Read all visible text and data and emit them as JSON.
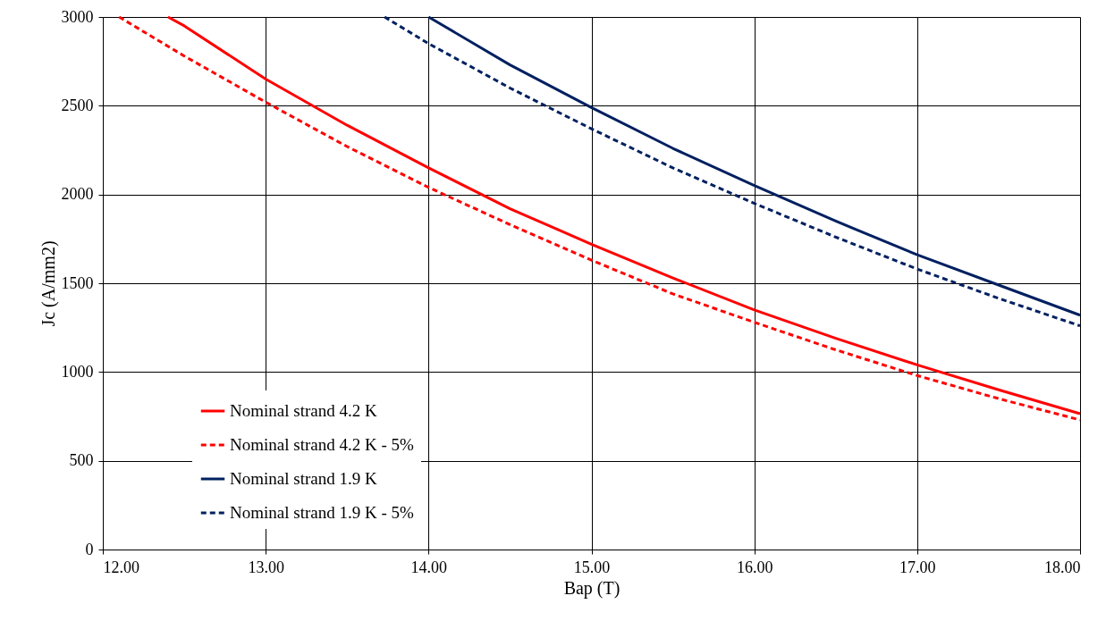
{
  "chart_data": {
    "type": "line",
    "xlabel": "Bap (T)",
    "ylabel": "Jc (A/mm2)",
    "xlim": [
      12,
      18
    ],
    "ylim": [
      0,
      3000
    ],
    "xticks": [
      {
        "value": 12,
        "label": "12.00"
      },
      {
        "value": 13,
        "label": "13.00"
      },
      {
        "value": 14,
        "label": "14.00"
      },
      {
        "value": 15,
        "label": "15.00"
      },
      {
        "value": 16,
        "label": "16.00"
      },
      {
        "value": 17,
        "label": "17.00"
      },
      {
        "value": 18,
        "label": "18.00"
      }
    ],
    "yticks": [
      0,
      500,
      1000,
      1500,
      2000,
      2500,
      3000
    ],
    "grid": true,
    "legend": "bottom left",
    "marker": "none",
    "series": [
      {
        "name": "Nominal strand 4.2 K",
        "color": "#ff0000",
        "line_style": "solid",
        "x": [
          12.4,
          12.5,
          13,
          13.5,
          14,
          14.5,
          15,
          15.5,
          16,
          16.5,
          17,
          17.5,
          18
        ],
        "values": [
          3000,
          2950,
          2650,
          2390,
          2150,
          1920,
          1720,
          1530,
          1350,
          1190,
          1040,
          900,
          765
        ]
      },
      {
        "name": "Nominal strand 4.2 K - 5%",
        "color": "#ff0000",
        "line_style": "dashed",
        "x": [
          12.1,
          12.5,
          13,
          13.5,
          14,
          14.5,
          15,
          15.5,
          16,
          16.5,
          17,
          17.5,
          18
        ],
        "values": [
          3000,
          2780,
          2520,
          2270,
          2040,
          1830,
          1630,
          1440,
          1280,
          1125,
          980,
          850,
          730
        ]
      },
      {
        "name": "Nominal strand 1.9 K",
        "color": "#002060",
        "line_style": "solid",
        "x": [
          14,
          14.5,
          15,
          15.5,
          16,
          16.5,
          17,
          17.5,
          18
        ],
        "values": [
          3000,
          2730,
          2490,
          2260,
          2050,
          1850,
          1660,
          1490,
          1320
        ]
      },
      {
        "name": "Nominal strand 1.9 K - 5%",
        "color": "#002060",
        "line_style": "dashed",
        "x": [
          13.73,
          14,
          14.5,
          15,
          15.5,
          16,
          16.5,
          17,
          17.5,
          18
        ],
        "values": [
          3000,
          2850,
          2600,
          2370,
          2150,
          1950,
          1760,
          1580,
          1415,
          1260
        ]
      }
    ]
  }
}
